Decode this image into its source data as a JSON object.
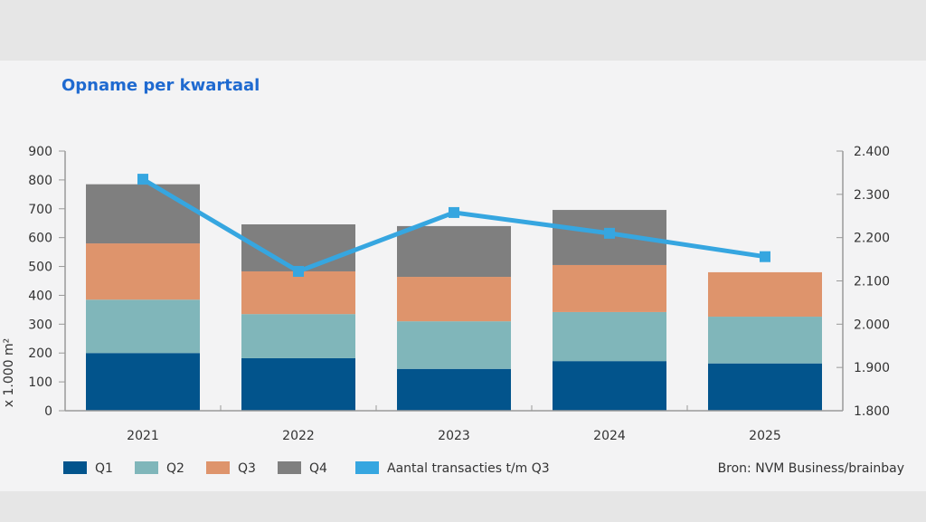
{
  "chart_data": {
    "type": "bar",
    "stacked": true,
    "title": "Opname per kwartaal",
    "ylabel": "x 1.000 m²",
    "categories": [
      "2021",
      "2022",
      "2023",
      "2024",
      "2025"
    ],
    "ylim": [
      0,
      900
    ],
    "yticks": [
      "0",
      "100",
      "200",
      "300",
      "400",
      "500",
      "600",
      "700",
      "800",
      "900"
    ],
    "y2lim": [
      1800,
      2400
    ],
    "y2ticks": [
      "1.800",
      "1.900",
      "2.000",
      "2.100",
      "2.200",
      "2.300",
      "2.400"
    ],
    "grid": false,
    "legend_position": "bottom",
    "series": [
      {
        "name": "Q1",
        "color": "#02548c",
        "values": [
          200,
          182,
          145,
          172,
          164
        ]
      },
      {
        "name": "Q2",
        "color": "#80b6ba",
        "values": [
          185,
          153,
          165,
          170,
          162
        ]
      },
      {
        "name": "Q3",
        "color": "#de946c",
        "values": [
          195,
          148,
          154,
          163,
          154
        ]
      },
      {
        "name": "Q4",
        "color": "#7f7f7f",
        "values": [
          205,
          163,
          176,
          191,
          null
        ]
      }
    ],
    "line_series": {
      "name": "Aantal transacties t/m Q3",
      "color": "#36a6e0",
      "axis": "right",
      "values": [
        2335,
        2122,
        2258,
        2210,
        2156
      ]
    },
    "source": "Bron: NVM Business/brainbay"
  }
}
